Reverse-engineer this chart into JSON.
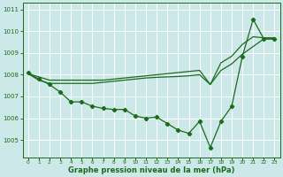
{
  "x": [
    0,
    1,
    2,
    3,
    4,
    5,
    6,
    7,
    8,
    9,
    10,
    11,
    12,
    13,
    14,
    15,
    16,
    17,
    18,
    19,
    20,
    21,
    22,
    23
  ],
  "y_main": [
    1008.1,
    1007.8,
    1007.55,
    1007.2,
    1006.75,
    1006.75,
    1006.55,
    1006.45,
    1006.4,
    1006.4,
    1006.1,
    1006.0,
    1006.05,
    1005.75,
    1005.45,
    1005.3,
    1005.85,
    1004.65,
    1005.85,
    1006.55,
    1008.85,
    1010.55,
    1009.65,
    1009.65
  ],
  "y_smooth1": [
    1008.05,
    1007.9,
    1007.75,
    1007.75,
    1007.75,
    1007.75,
    1007.75,
    1007.75,
    1007.8,
    1007.85,
    1007.9,
    1007.95,
    1008.0,
    1008.05,
    1008.1,
    1008.15,
    1008.2,
    1007.55,
    1008.55,
    1008.85,
    1009.4,
    1009.75,
    1009.7,
    1009.7
  ],
  "y_smooth2": [
    1008.05,
    1007.75,
    1007.6,
    1007.6,
    1007.6,
    1007.6,
    1007.6,
    1007.65,
    1007.7,
    1007.75,
    1007.8,
    1007.85,
    1007.88,
    1007.9,
    1007.92,
    1007.95,
    1008.0,
    1007.55,
    1008.2,
    1008.5,
    1008.95,
    1009.3,
    1009.65,
    1009.65
  ],
  "line_color": "#1a6b1a",
  "bg_color": "#cce8e8",
  "grid_color": "#ffffff",
  "xlabel": "Graphe pression niveau de la mer (hPa)",
  "ylim": [
    1004.2,
    1011.3
  ],
  "xlim": [
    -0.5,
    23.5
  ],
  "yticks": [
    1005,
    1006,
    1007,
    1008,
    1009,
    1010,
    1011
  ],
  "xticks": [
    0,
    1,
    2,
    3,
    4,
    5,
    6,
    7,
    8,
    9,
    10,
    11,
    12,
    13,
    14,
    15,
    16,
    17,
    18,
    19,
    20,
    21,
    22,
    23
  ]
}
